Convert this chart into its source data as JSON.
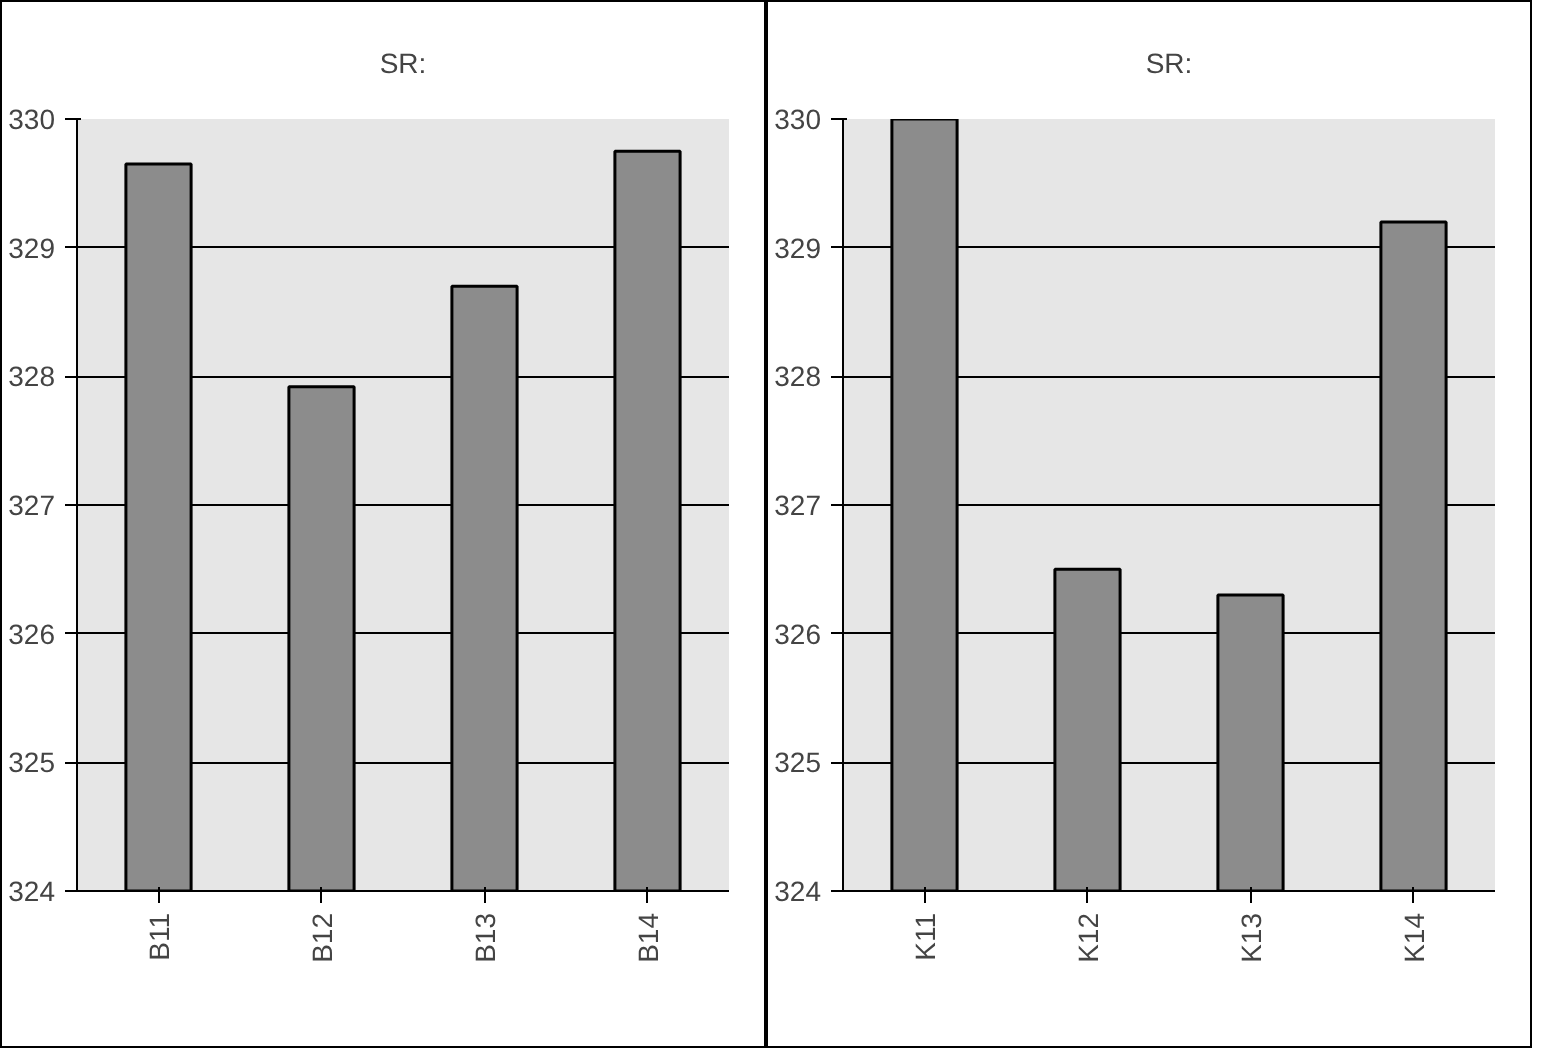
{
  "chart_data": [
    {
      "type": "bar",
      "title": "SR:",
      "categories": [
        "B11",
        "B12",
        "B13",
        "B14"
      ],
      "values": [
        329.65,
        327.92,
        328.7,
        329.75
      ],
      "color": "#8c8c8c",
      "ylim": [
        324,
        330
      ],
      "yticks": [
        324,
        325,
        326,
        327,
        328,
        329,
        330
      ],
      "grid": "y"
    },
    {
      "type": "bar",
      "title": "SR:",
      "categories": [
        "K11",
        "K12",
        "K13",
        "K14"
      ],
      "values": [
        330,
        326.5,
        326.3,
        329.2
      ],
      "color": "#8c8c8c",
      "ylim": [
        324,
        330
      ],
      "yticks": [
        324,
        325,
        326,
        327,
        328,
        329,
        330
      ],
      "grid": "y"
    }
  ]
}
